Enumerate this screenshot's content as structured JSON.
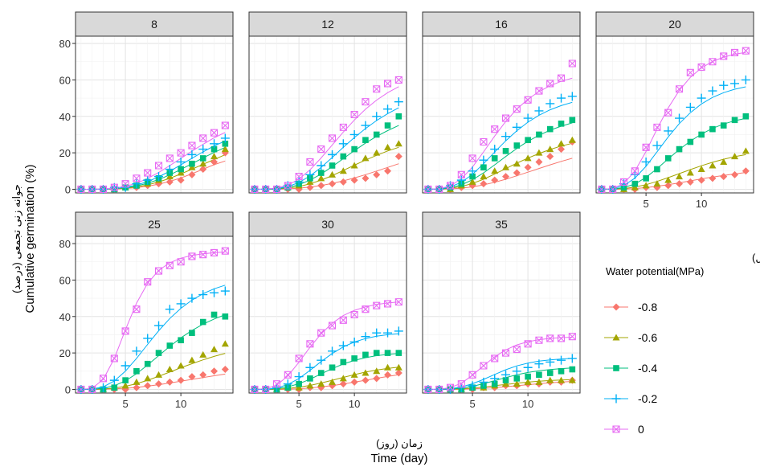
{
  "chart_data": {
    "type": "scatter",
    "facet_variable": "temperature",
    "facets": [
      "8",
      "12",
      "16",
      "20",
      "25",
      "30",
      "35"
    ],
    "xlabel_fa": "زمان (روز)",
    "xlabel": "Time (day)",
    "ylabel_fa": "جوانه زنی تجمعی (درصد)",
    "ylabel": "Cumulative germination (%)",
    "x_ticks": [
      5,
      10
    ],
    "y_ticks": [
      0,
      20,
      40,
      60,
      80
    ],
    "xlim": [
      0.5,
      14.7
    ],
    "ylim": [
      -2,
      84
    ],
    "grid": true,
    "legend_position": "right",
    "legend_title_fa": "پتانسیل اسمزی(مگاپاسکال)",
    "legend_title": "Water potential(MPa)",
    "series_names": [
      "-0.8",
      "-0.6",
      "-0.4",
      "-0.2",
      "0"
    ],
    "series_colors": [
      "#F8766D",
      "#A3A500",
      "#00BF7D",
      "#00B0F6",
      "#E76BF3"
    ],
    "series_markers": [
      "diamond",
      "triangle",
      "square",
      "plus",
      "square-x"
    ],
    "days": [
      1,
      2,
      3,
      4,
      5,
      6,
      7,
      8,
      9,
      10,
      11,
      12,
      13,
      14
    ],
    "panels": [
      {
        "facet": "8",
        "observed": [
          [
            0,
            0,
            0,
            0,
            1,
            1,
            2,
            3,
            4,
            5,
            8,
            11,
            15,
            20
          ],
          [
            0,
            0,
            0,
            0,
            1,
            2,
            3,
            5,
            7,
            9,
            12,
            14,
            18,
            22
          ],
          [
            0,
            0,
            0,
            0,
            1,
            2,
            4,
            6,
            9,
            11,
            14,
            17,
            22,
            25
          ],
          [
            0,
            0,
            0,
            1,
            1,
            3,
            5,
            7,
            11,
            15,
            19,
            22,
            25,
            28
          ],
          [
            0,
            0,
            0,
            1,
            3,
            6,
            9,
            13,
            17,
            20,
            24,
            28,
            31,
            35
          ]
        ],
        "fitted": [
          [
            0,
            0,
            0,
            0.1,
            0.4,
            0.9,
            1.7,
            2.8,
            4.3,
            6.2,
            8.5,
            11,
            13.5,
            15.5
          ],
          [
            0,
            0,
            0,
            0.2,
            0.6,
            1.3,
            2.4,
            4,
            6,
            8.4,
            11,
            13.7,
            16.3,
            19
          ],
          [
            0,
            0,
            0.1,
            0.3,
            0.9,
            1.8,
            3.3,
            5.3,
            7.9,
            10.9,
            14,
            17.2,
            20.2,
            23
          ],
          [
            0,
            0,
            0.1,
            0.4,
            1.1,
            2.3,
            4.2,
            6.8,
            9.9,
            13.4,
            17,
            20.5,
            23.8,
            26.5
          ],
          [
            0,
            0,
            0.2,
            0.6,
            1.6,
            3.3,
            5.9,
            9.2,
            13,
            16.9,
            20.9,
            24.7,
            28.2,
            31.2
          ]
        ]
      },
      {
        "facet": "12",
        "observed": [
          [
            0,
            0,
            0,
            0,
            0,
            1,
            2,
            3,
            4,
            5,
            6,
            8,
            10,
            18
          ],
          [
            0,
            0,
            0,
            1,
            2,
            4,
            6,
            8,
            10,
            13,
            17,
            20,
            23,
            25
          ],
          [
            0,
            0,
            0,
            1,
            3,
            6,
            9,
            13,
            18,
            22,
            27,
            30,
            35,
            40
          ],
          [
            0,
            0,
            0,
            2,
            4,
            8,
            13,
            19,
            25,
            30,
            35,
            40,
            44,
            48
          ],
          [
            0,
            0,
            0,
            2,
            7,
            15,
            22,
            28,
            34,
            41,
            48,
            55,
            58,
            60
          ]
        ],
        "fitted": [
          [
            0,
            0,
            0,
            0.2,
            0.6,
            1.2,
            2.1,
            3.2,
            4.6,
            6.2,
            8,
            10,
            12,
            14
          ],
          [
            0,
            0,
            0.2,
            0.6,
            1.5,
            3,
            5,
            7.5,
            10.3,
            13.2,
            16,
            18.6,
            21,
            23
          ],
          [
            0,
            0,
            0.3,
            1,
            2.5,
            5,
            8.3,
            12.4,
            16.8,
            21.2,
            25.3,
            29,
            32.2,
            35
          ],
          [
            0,
            0.1,
            0.5,
            1.5,
            3.7,
            7.3,
            12,
            17.4,
            23,
            28.4,
            33.3,
            37.7,
            41.5,
            44.7
          ],
          [
            0,
            0.1,
            0.7,
            2.3,
            5.6,
            10.7,
            17.2,
            24.3,
            31.4,
            38,
            43.9,
            48.9,
            53,
            56.3
          ]
        ]
      },
      {
        "facet": "16",
        "observed": [
          [
            0,
            0,
            0,
            1,
            2,
            3,
            5,
            7,
            9,
            12,
            15,
            18,
            22,
            26
          ],
          [
            0,
            0,
            0,
            2,
            4,
            7,
            10,
            12,
            14,
            17,
            20,
            22,
            25,
            27
          ],
          [
            0,
            0,
            1,
            3,
            7,
            12,
            17,
            21,
            24,
            27,
            30,
            33,
            36,
            38
          ],
          [
            0,
            0,
            2,
            5,
            10,
            16,
            22,
            29,
            34,
            39,
            43,
            47,
            50,
            51
          ],
          [
            0,
            0,
            2,
            8,
            17,
            26,
            33,
            39,
            44,
            49,
            54,
            58,
            61,
            69
          ]
        ],
        "fitted": [
          [
            0,
            0,
            0.2,
            0.6,
            1.3,
            2.4,
            3.8,
            5.5,
            7.4,
            9.4,
            11.4,
            13.4,
            15.3,
            17
          ],
          [
            0,
            0.1,
            0.5,
            1.5,
            3.2,
            5.5,
            8.3,
            11.3,
            14.3,
            17.1,
            19.6,
            21.8,
            23.7,
            25.2
          ],
          [
            0,
            0.1,
            0.8,
            2.4,
            5.2,
            9,
            13.4,
            18,
            22.4,
            26.3,
            29.6,
            32.4,
            34.6,
            36.4
          ],
          [
            0,
            0.2,
            1.3,
            3.8,
            8.2,
            14,
            20.4,
            26.6,
            32.1,
            36.8,
            40.6,
            43.6,
            45.9,
            47.7
          ],
          [
            0,
            0.3,
            1.9,
            5.7,
            12.2,
            20.5,
            29.2,
            37.2,
            44,
            49.4,
            53.6,
            56.8,
            59.2,
            61
          ]
        ]
      },
      {
        "facet": "20",
        "observed": [
          [
            0,
            0,
            0,
            0,
            1,
            1,
            2,
            3,
            4,
            5,
            6,
            7,
            8,
            10
          ],
          [
            0,
            0,
            0,
            1,
            2,
            3,
            5,
            7,
            9,
            11,
            13,
            15,
            18,
            21
          ],
          [
            0,
            0,
            1,
            3,
            6,
            11,
            17,
            22,
            26,
            30,
            33,
            35,
            38,
            40
          ],
          [
            0,
            0,
            3,
            8,
            15,
            24,
            32,
            39,
            45,
            50,
            54,
            57,
            58,
            60
          ],
          [
            0,
            0,
            4,
            10,
            23,
            34,
            42,
            55,
            64,
            67,
            70,
            73,
            75,
            76
          ]
        ],
        "fitted": [
          [
            0,
            0,
            0.1,
            0.4,
            0.9,
            1.6,
            2.5,
            3.5,
            4.6,
            5.7,
            6.7,
            7.6,
            8.4,
            9.2
          ],
          [
            0,
            0.1,
            0.4,
            1.2,
            2.5,
            4.3,
            6.4,
            8.6,
            10.8,
            12.9,
            14.8,
            16.5,
            17.9,
            19
          ],
          [
            0,
            0.1,
            0.9,
            2.9,
            6.5,
            11.3,
            16.6,
            21.8,
            26.4,
            30.3,
            33.4,
            35.8,
            37.6,
            38.9
          ],
          [
            0,
            0.3,
            2,
            6.1,
            12.6,
            20.6,
            28.7,
            36,
            42,
            46.8,
            50.4,
            53,
            54.9,
            56.2
          ],
          [
            0,
            0.4,
            3.2,
            10,
            20.7,
            33.1,
            44.6,
            54.2,
            61.4,
            66.6,
            70.1,
            72.5,
            74.1,
            75.1
          ]
        ]
      },
      {
        "facet": "25",
        "observed": [
          [
            0,
            0,
            0,
            0,
            0,
            1,
            2,
            3,
            4,
            5,
            7,
            8,
            10,
            11
          ],
          [
            0,
            0,
            0,
            1,
            2,
            4,
            6,
            8,
            11,
            13,
            16,
            19,
            22,
            25
          ],
          [
            0,
            0,
            0,
            1,
            5,
            10,
            14,
            20,
            24,
            27,
            31,
            37,
            41,
            40
          ],
          [
            0,
            0,
            1,
            5,
            13,
            21,
            28,
            35,
            44,
            47,
            50,
            52,
            53,
            54
          ],
          [
            0,
            0,
            6,
            17,
            32,
            44,
            59,
            65,
            68,
            70,
            73,
            74,
            75,
            76
          ]
        ],
        "fitted": [
          [
            0,
            0,
            0.1,
            0.3,
            0.6,
            1.1,
            1.8,
            2.6,
            3.5,
            4.5,
            5.5,
            6.5,
            7.5,
            8.4
          ],
          [
            0,
            0,
            0.2,
            0.7,
            1.7,
            3.1,
            5,
            7.2,
            9.5,
            11.9,
            14.1,
            16.2,
            18.1,
            19.8
          ],
          [
            0,
            0.1,
            0.6,
            2,
            4.7,
            8.6,
            13.4,
            18.5,
            23.6,
            28.3,
            32.3,
            35.8,
            38.6,
            41
          ],
          [
            0,
            0.2,
            1.4,
            4.6,
            10,
            17,
            24.7,
            32.2,
            38.9,
            44.5,
            49,
            52.5,
            55.2,
            57.2
          ],
          [
            0,
            0.6,
            5.5,
            17,
            32.7,
            47.3,
            58.2,
            65.3,
            69.5,
            72,
            73.5,
            74.4,
            75,
            75.4
          ]
        ]
      },
      {
        "facet": "30",
        "observed": [
          [
            0,
            0,
            0,
            0,
            0,
            1,
            1,
            2,
            3,
            4,
            5,
            6,
            8,
            9
          ],
          [
            0,
            0,
            0,
            1,
            1,
            2,
            3,
            4,
            6,
            8,
            9,
            10,
            12,
            12
          ],
          [
            0,
            0,
            0,
            1,
            3,
            6,
            9,
            12,
            15,
            17,
            19,
            20,
            20,
            20
          ],
          [
            0,
            0,
            1,
            3,
            7,
            12,
            16,
            21,
            24,
            26,
            29,
            31,
            31,
            32
          ],
          [
            0,
            0,
            3,
            8,
            17,
            25,
            31,
            35,
            38,
            41,
            44,
            46,
            47,
            48
          ]
        ],
        "fitted": [
          [
            0,
            0,
            0,
            0.1,
            0.4,
            0.8,
            1.4,
            2.1,
            3,
            4,
            5,
            6.1,
            7.1,
            8.1
          ],
          [
            0,
            0,
            0.1,
            0.5,
            1.2,
            2.2,
            3.5,
            5,
            6.6,
            8.1,
            9.5,
            10.6,
            11.5,
            12.2
          ],
          [
            0,
            0.1,
            0.4,
            1.4,
            3.1,
            5.6,
            8.5,
            11.4,
            13.9,
            15.9,
            17.4,
            18.5,
            19.2,
            19.7
          ],
          [
            0,
            0.1,
            0.8,
            2.7,
            6,
            10.5,
            15.3,
            19.7,
            23.3,
            26,
            27.9,
            29.2,
            30,
            30.6
          ],
          [
            0,
            0.3,
            2.4,
            7.4,
            14.9,
            23.2,
            30.5,
            36.3,
            40.5,
            43.4,
            45.3,
            46.6,
            47.4,
            48
          ]
        ]
      },
      {
        "facet": "35",
        "observed": [
          [
            0,
            0,
            0,
            0,
            0,
            1,
            1,
            2,
            2,
            3,
            3,
            4,
            4,
            5
          ],
          [
            0,
            0,
            0,
            0,
            1,
            1,
            2,
            3,
            3,
            4,
            4,
            5,
            5,
            5
          ],
          [
            0,
            0,
            0,
            0,
            1,
            2,
            3,
            5,
            6,
            7,
            8,
            9,
            10,
            11
          ],
          [
            0,
            0,
            0,
            1,
            2,
            4,
            6,
            8,
            10,
            12,
            14,
            15,
            16,
            17
          ],
          [
            0,
            0,
            1,
            3,
            8,
            13,
            17,
            20,
            22,
            25,
            27,
            28,
            28,
            29
          ]
        ],
        "fitted": [
          [
            0,
            0,
            0,
            0.1,
            0.3,
            0.6,
            1,
            1.5,
            2,
            2.6,
            3.1,
            3.6,
            4,
            4.4
          ],
          [
            0,
            0,
            0.1,
            0.3,
            0.7,
            1.3,
            2,
            2.7,
            3.4,
            4,
            4.5,
            4.9,
            5.2,
            5.4
          ],
          [
            0,
            0,
            0.2,
            0.7,
            1.7,
            3.1,
            4.8,
            6.5,
            8,
            9.3,
            10.2,
            10.9,
            11.4,
            11.8
          ],
          [
            0,
            0.1,
            0.4,
            1.3,
            3.1,
            5.5,
            8.2,
            10.8,
            12.9,
            14.4,
            15.5,
            16.2,
            16.7,
            17
          ],
          [
            0,
            0.1,
            1,
            3.4,
            7.8,
            13,
            17.9,
            21.7,
            24.4,
            26.2,
            27.3,
            28,
            28.4,
            28.7
          ]
        ]
      }
    ]
  }
}
